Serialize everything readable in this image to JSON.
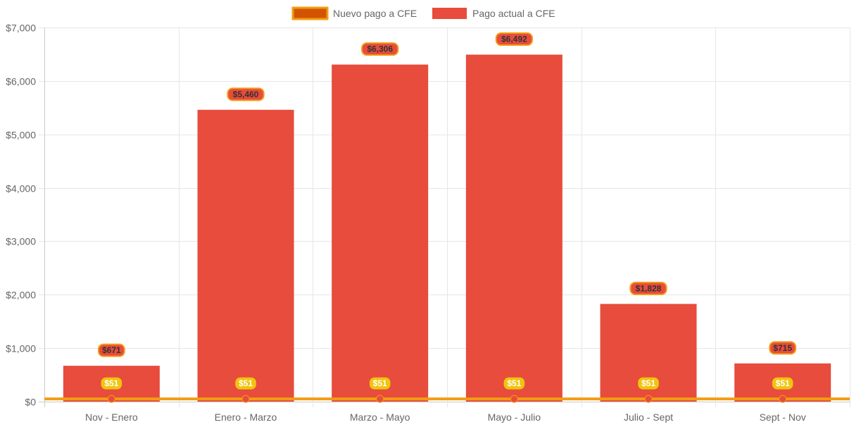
{
  "chart_data": {
    "type": "bar",
    "categories": [
      "Nov - Enero",
      "Enero - Marzo",
      "Marzo - Mayo",
      "Mayo - Julio",
      "Julio - Sept",
      "Sept - Nov"
    ],
    "series": [
      {
        "name": "Nuevo pago a CFE",
        "type": "line",
        "values": [
          51,
          51,
          51,
          51,
          51,
          51
        ],
        "labels": [
          "$51",
          "$51",
          "$51",
          "$51",
          "$51",
          "$51"
        ],
        "color": "#f39c12",
        "fill_color": "#d35400",
        "point_color": "#e74c3c",
        "label_bg": "#f1c40f",
        "label_text_color": "#ffffff"
      },
      {
        "name": "Pago actual a CFE",
        "type": "bar",
        "values": [
          671,
          5460,
          6306,
          6492,
          1828,
          715
        ],
        "labels": [
          "$671",
          "$5,460",
          "$6,306",
          "$6,492",
          "$1,828",
          "$715"
        ],
        "color": "#e74c3c",
        "label_bg": "#e74c3c",
        "label_border": "#f39c12",
        "label_text_color": "#333333"
      }
    ],
    "y_ticks": [
      "$0",
      "$1,000",
      "$2,000",
      "$3,000",
      "$4,000",
      "$5,000",
      "$6,000",
      "$7,000"
    ],
    "ylim": [
      0,
      7000
    ],
    "grid": true,
    "legend_position": "top"
  }
}
